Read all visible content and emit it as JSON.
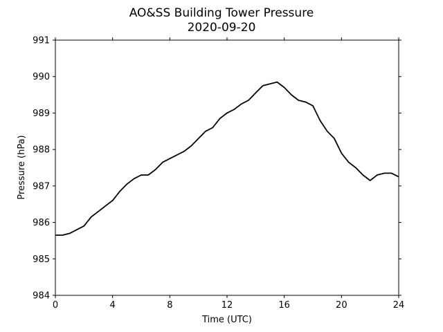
{
  "chart_data": {
    "type": "line",
    "title": "AO&SS Building Tower Pressure",
    "subtitle": "2020-09-20",
    "xlabel": "Time (UTC)",
    "ylabel": "Pressure (hPa)",
    "xlim": [
      0,
      24
    ],
    "ylim": [
      984,
      991
    ],
    "xticks": [
      0,
      4,
      8,
      12,
      16,
      20,
      24
    ],
    "yticks": [
      984,
      985,
      986,
      987,
      988,
      989,
      990,
      991
    ],
    "grid": false,
    "line_color": "#000000",
    "series": [
      {
        "x": [
          0,
          0.5,
          1,
          1.5,
          2,
          2.5,
          3,
          3.5,
          4,
          4.5,
          5,
          5.5,
          6,
          6.5,
          7,
          7.5,
          8,
          8.5,
          9,
          9.5,
          10,
          10.5,
          11,
          11.5,
          12,
          12.5,
          13,
          13.5,
          14,
          14.5,
          15,
          15.5,
          16,
          16.5,
          17,
          17.5,
          18,
          18.5,
          19,
          19.5,
          20,
          20.5,
          21,
          21.5,
          22,
          22.5,
          23,
          23.5,
          24
        ],
        "values": [
          985.65,
          985.65,
          985.7,
          985.8,
          985.9,
          986.15,
          986.3,
          986.45,
          986.6,
          986.85,
          987.05,
          987.2,
          987.3,
          987.3,
          987.45,
          987.65,
          987.75,
          987.85,
          987.95,
          988.1,
          988.3,
          988.5,
          988.6,
          988.85,
          989.0,
          989.1,
          989.25,
          989.35,
          989.55,
          989.75,
          989.8,
          989.85,
          989.7,
          989.5,
          989.35,
          989.3,
          989.2,
          988.8,
          988.5,
          988.3,
          987.9,
          987.65,
          987.5,
          987.3,
          987.15,
          987.3,
          987.35,
          987.35,
          987.25
        ]
      }
    ]
  }
}
